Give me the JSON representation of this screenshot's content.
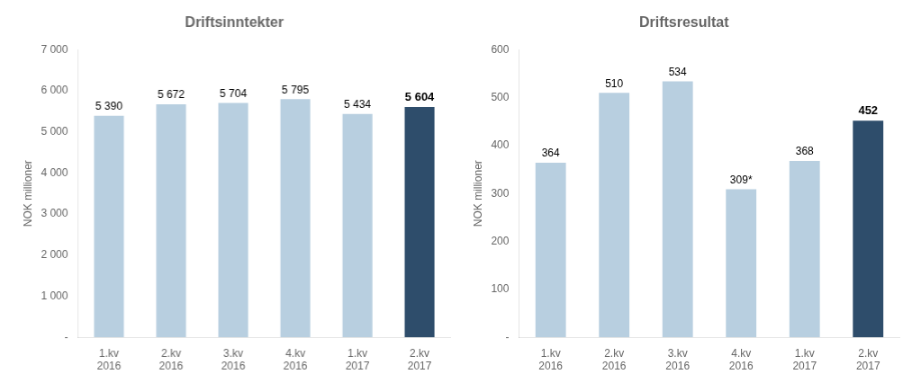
{
  "chart_data": [
    {
      "type": "bar",
      "title": "Driftsinntekter",
      "ylabel": "NOK millioner",
      "categories": [
        "1.kv\n2016",
        "2.kv\n2016",
        "3.kv\n2016",
        "4.kv\n2016",
        "1.kv\n2017",
        "2.kv\n2017"
      ],
      "values": [
        5390,
        5672,
        5704,
        5795,
        5434,
        5604
      ],
      "value_labels": [
        "5 390",
        "5 672",
        "5 704",
        "5 795",
        "5 434",
        "5 604"
      ],
      "data_labels": true,
      "colors": [
        "#b8cfe0",
        "#b8cfe0",
        "#b8cfe0",
        "#b8cfe0",
        "#b8cfe0",
        "#2e4d6b"
      ],
      "ylim": [
        0,
        7000
      ],
      "yticks": [
        {
          "value": 0,
          "label": "-"
        },
        {
          "value": 1000,
          "label": "1 000"
        },
        {
          "value": 2000,
          "label": "2 000"
        },
        {
          "value": 3000,
          "label": "3 000"
        },
        {
          "value": 4000,
          "label": "4 000"
        },
        {
          "value": 5000,
          "label": "5 000"
        },
        {
          "value": 6000,
          "label": "6 000"
        },
        {
          "value": 7000,
          "label": "7 000"
        }
      ],
      "grid": false
    },
    {
      "type": "bar",
      "title": "Driftsresultat",
      "ylabel": "NOK millioner",
      "categories": [
        "1.kv\n2016",
        "2.kv\n2016",
        "3.kv\n2016",
        "4.kv\n2016",
        "1.kv\n2017",
        "2.kv\n2017"
      ],
      "values": [
        364,
        510,
        534,
        309,
        368,
        452
      ],
      "value_labels": [
        "364",
        "510",
        "534",
        "309*",
        "368",
        "452"
      ],
      "data_labels": true,
      "colors": [
        "#b8cfe0",
        "#b8cfe0",
        "#b8cfe0",
        "#b8cfe0",
        "#b8cfe0",
        "#2e4d6b"
      ],
      "ylim": [
        0,
        600
      ],
      "yticks": [
        {
          "value": 0,
          "label": "-"
        },
        100,
        200,
        300,
        400,
        500,
        600
      ],
      "grid": false
    }
  ]
}
